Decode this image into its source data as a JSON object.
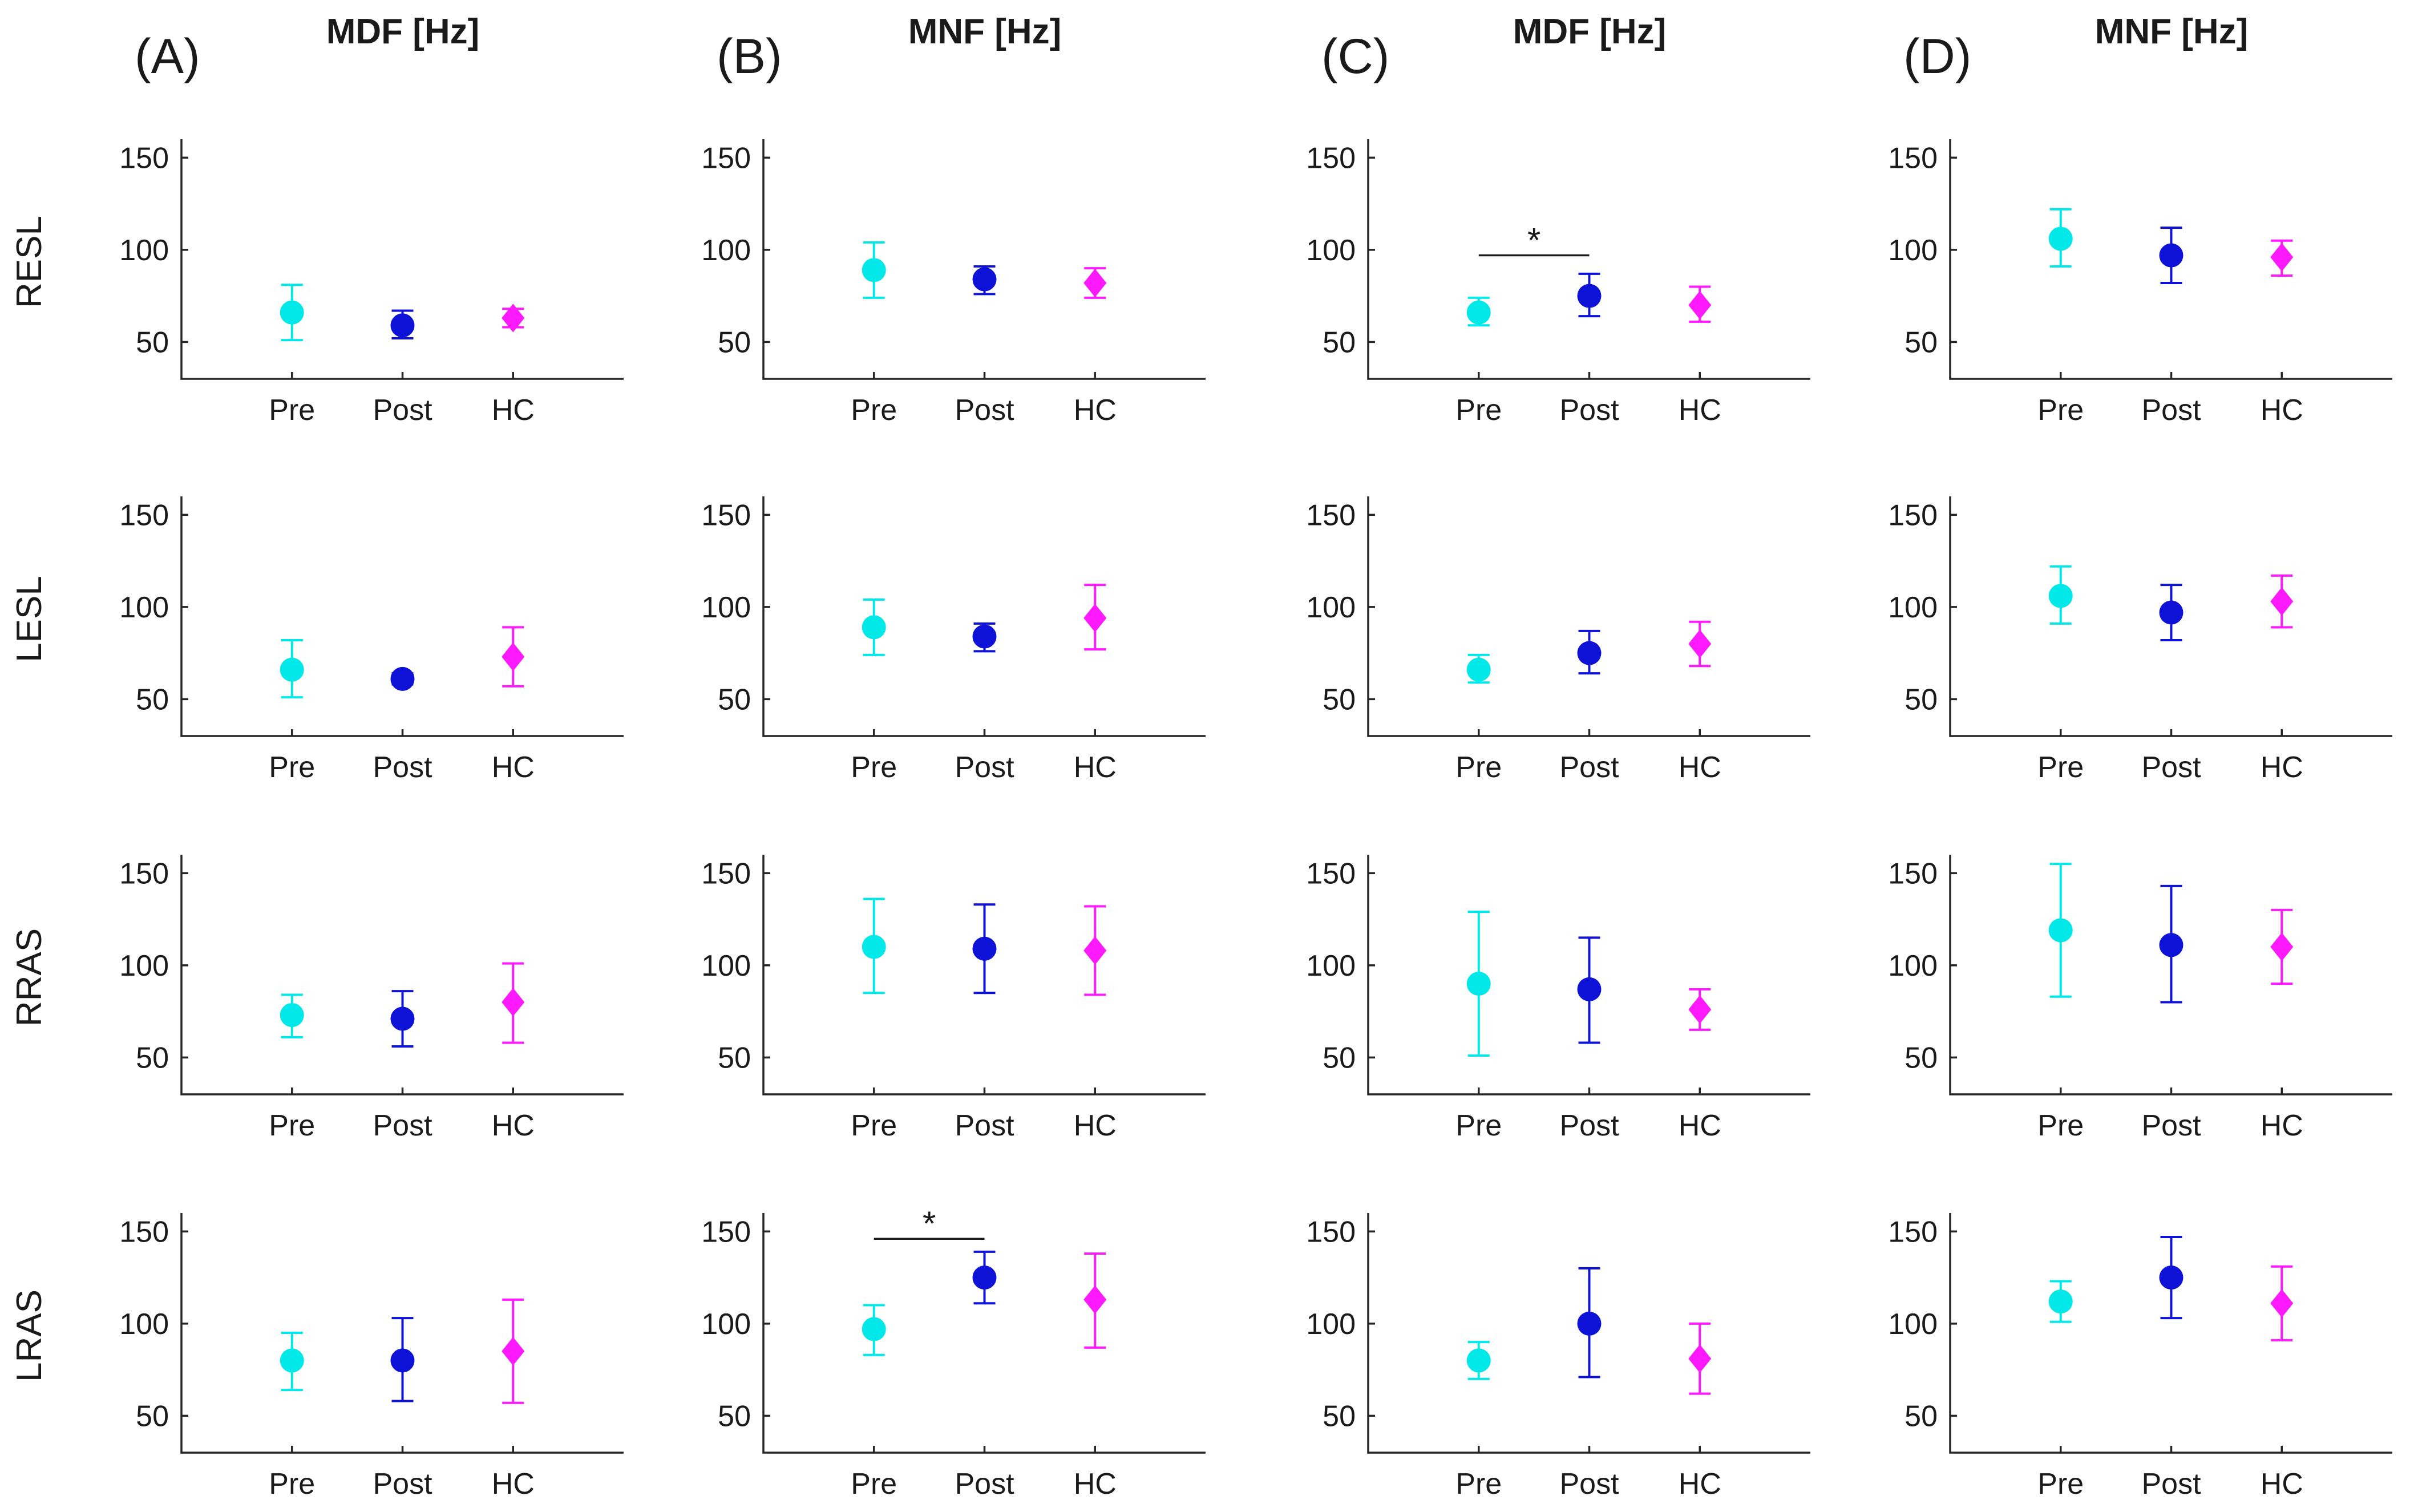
{
  "colors": {
    "Pre": "#00e8e8",
    "Post": "#0d12d6",
    "HC": "#ff19ff",
    "axis": "#262626",
    "text": "#1a1a1a"
  },
  "markers": {
    "Pre": "circle",
    "Post": "circle",
    "HC": "diamond"
  },
  "chart_data": {
    "type": "scatter",
    "variant": "mean_with_error_bars",
    "columns": [
      {
        "letter": "(A)",
        "title": "MDF [Hz]"
      },
      {
        "letter": "(B)",
        "title": "MNF [Hz]"
      },
      {
        "letter": "(C)",
        "title": "MDF [Hz]"
      },
      {
        "letter": "(D)",
        "title": "MNF [Hz]"
      }
    ],
    "rows": [
      "RESL",
      "LESL",
      "RRAS",
      "LRAS"
    ],
    "categories": [
      "Pre",
      "Post",
      "HC"
    ],
    "yticks": [
      50,
      100,
      150
    ],
    "ylim": [
      30,
      160
    ],
    "grid": false,
    "panels": [
      [
        {
          "points": [
            {
              "mean": 66,
              "low": 51,
              "high": 81
            },
            {
              "mean": 59,
              "low": 52,
              "high": 67
            },
            {
              "mean": 63,
              "low": 58,
              "high": 68
            }
          ],
          "significance": []
        },
        {
          "points": [
            {
              "mean": 66,
              "low": 51,
              "high": 82
            },
            {
              "mean": 61,
              "low": 58,
              "high": 64
            },
            {
              "mean": 73,
              "low": 57,
              "high": 89
            }
          ],
          "significance": []
        },
        {
          "points": [
            {
              "mean": 73,
              "low": 61,
              "high": 84
            },
            {
              "mean": 71,
              "low": 56,
              "high": 86
            },
            {
              "mean": 80,
              "low": 58,
              "high": 101
            }
          ],
          "significance": []
        },
        {
          "points": [
            {
              "mean": 80,
              "low": 64,
              "high": 95
            },
            {
              "mean": 80,
              "low": 58,
              "high": 103
            },
            {
              "mean": 85,
              "low": 57,
              "high": 113
            }
          ],
          "significance": []
        }
      ],
      [
        {
          "points": [
            {
              "mean": 89,
              "low": 74,
              "high": 104
            },
            {
              "mean": 84,
              "low": 76,
              "high": 91
            },
            {
              "mean": 82,
              "low": 74,
              "high": 90
            }
          ],
          "significance": []
        },
        {
          "points": [
            {
              "mean": 89,
              "low": 74,
              "high": 104
            },
            {
              "mean": 84,
              "low": 76,
              "high": 91
            },
            {
              "mean": 94,
              "low": 77,
              "high": 112
            }
          ],
          "significance": []
        },
        {
          "points": [
            {
              "mean": 110,
              "low": 85,
              "high": 136
            },
            {
              "mean": 109,
              "low": 85,
              "high": 133
            },
            {
              "mean": 108,
              "low": 84,
              "high": 132
            }
          ],
          "significance": []
        },
        {
          "points": [
            {
              "mean": 97,
              "low": 83,
              "high": 110
            },
            {
              "mean": 125,
              "low": 111,
              "high": 139
            },
            {
              "mean": 113,
              "low": 87,
              "high": 138
            }
          ],
          "significance": [
            {
              "from": 0,
              "to": 1,
              "label": "*",
              "y": 146
            }
          ]
        }
      ],
      [
        {
          "points": [
            {
              "mean": 66,
              "low": 59,
              "high": 74
            },
            {
              "mean": 75,
              "low": 64,
              "high": 87
            },
            {
              "mean": 70,
              "low": 61,
              "high": 80
            }
          ],
          "significance": [
            {
              "from": 0,
              "to": 1,
              "label": "*",
              "y": 97
            }
          ]
        },
        {
          "points": [
            {
              "mean": 66,
              "low": 59,
              "high": 74
            },
            {
              "mean": 75,
              "low": 64,
              "high": 87
            },
            {
              "mean": 80,
              "low": 68,
              "high": 92
            }
          ],
          "significance": []
        },
        {
          "points": [
            {
              "mean": 90,
              "low": 51,
              "high": 129
            },
            {
              "mean": 87,
              "low": 58,
              "high": 115
            },
            {
              "mean": 76,
              "low": 65,
              "high": 87
            }
          ],
          "significance": []
        },
        {
          "points": [
            {
              "mean": 80,
              "low": 70,
              "high": 90
            },
            {
              "mean": 100,
              "low": 71,
              "high": 130
            },
            {
              "mean": 81,
              "low": 62,
              "high": 100
            }
          ],
          "significance": []
        }
      ],
      [
        {
          "points": [
            {
              "mean": 106,
              "low": 91,
              "high": 122
            },
            {
              "mean": 97,
              "low": 82,
              "high": 112
            },
            {
              "mean": 96,
              "low": 86,
              "high": 105
            }
          ],
          "significance": []
        },
        {
          "points": [
            {
              "mean": 106,
              "low": 91,
              "high": 122
            },
            {
              "mean": 97,
              "low": 82,
              "high": 112
            },
            {
              "mean": 103,
              "low": 89,
              "high": 117
            }
          ],
          "significance": []
        },
        {
          "points": [
            {
              "mean": 119,
              "low": 83,
              "high": 155
            },
            {
              "mean": 111,
              "low": 80,
              "high": 143
            },
            {
              "mean": 110,
              "low": 90,
              "high": 130
            }
          ],
          "significance": []
        },
        {
          "points": [
            {
              "mean": 112,
              "low": 101,
              "high": 123
            },
            {
              "mean": 125,
              "low": 103,
              "high": 147
            },
            {
              "mean": 111,
              "low": 91,
              "high": 131
            }
          ],
          "significance": []
        }
      ]
    ]
  }
}
